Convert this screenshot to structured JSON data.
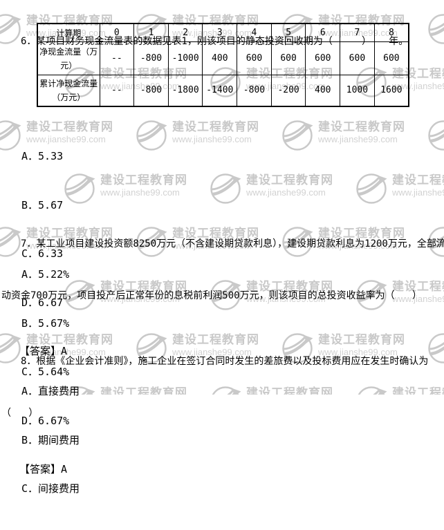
{
  "colors": {
    "text": "#000000",
    "table_border": "#000000",
    "watermark_text": "#c9c9c9",
    "watermark_url": "#d2d2d2"
  },
  "icons": {
    "watermark_logo": "circle-with-leaf-swoosh-and-flag"
  },
  "watermark": {
    "site_name": "建设工程教育网",
    "site_url": "www.jianshe99.com"
  },
  "questions": [
    {
      "number": "6",
      "stem_lines": [
        "6．某项目财务现金流量表的数据见表1，刚该项目的静态投资回收期为（     ）   年。"
      ],
      "table": {
        "header": [
          "计算期",
          "0",
          "1",
          "2",
          "3",
          "4",
          "5",
          "6",
          "7",
          "8"
        ],
        "rows": [
          {
            "label": "净现金流量（万元）",
            "values": [
              "--",
              "-800",
              "-1000",
              "400",
              "600",
              "600",
              "600",
              "600",
              "600"
            ]
          },
          {
            "label": "累计净现金流量（万元）",
            "values": [
              "--",
              "-800",
              "-1800",
              "-1400",
              "-800",
              "-200",
              "400",
              "1000",
              "1600"
            ]
          }
        ]
      },
      "options": [
        "A．5.33",
        "B．5.67",
        "C．6.33",
        "D．6.67"
      ],
      "answer": "【答案】A"
    },
    {
      "number": "7",
      "stem_lines": [
        "7．某工业项目建设投资额8250万元（不含建设期贷款利息），建设期贷款利息为1200万元，全部流",
        "动资金700万元，项目投产后正常年份的息税前利润500万元，则该项目的总投资收益率为（   ）"
      ],
      "options": [
        "A．5.22%",
        "B．5.67%",
        "C．5.64%",
        "D．6.67%"
      ],
      "answer": "【答案】A"
    },
    {
      "number": "8",
      "stem_lines": [
        "8．根据《企业会计准则》，施工企业在签订合同时发生的差旅费以及投标费用应在发生时确认为",
        "（   ）"
      ],
      "options": [
        "A．直接费用",
        "B．期间费用",
        "C．间接费用"
      ]
    }
  ]
}
